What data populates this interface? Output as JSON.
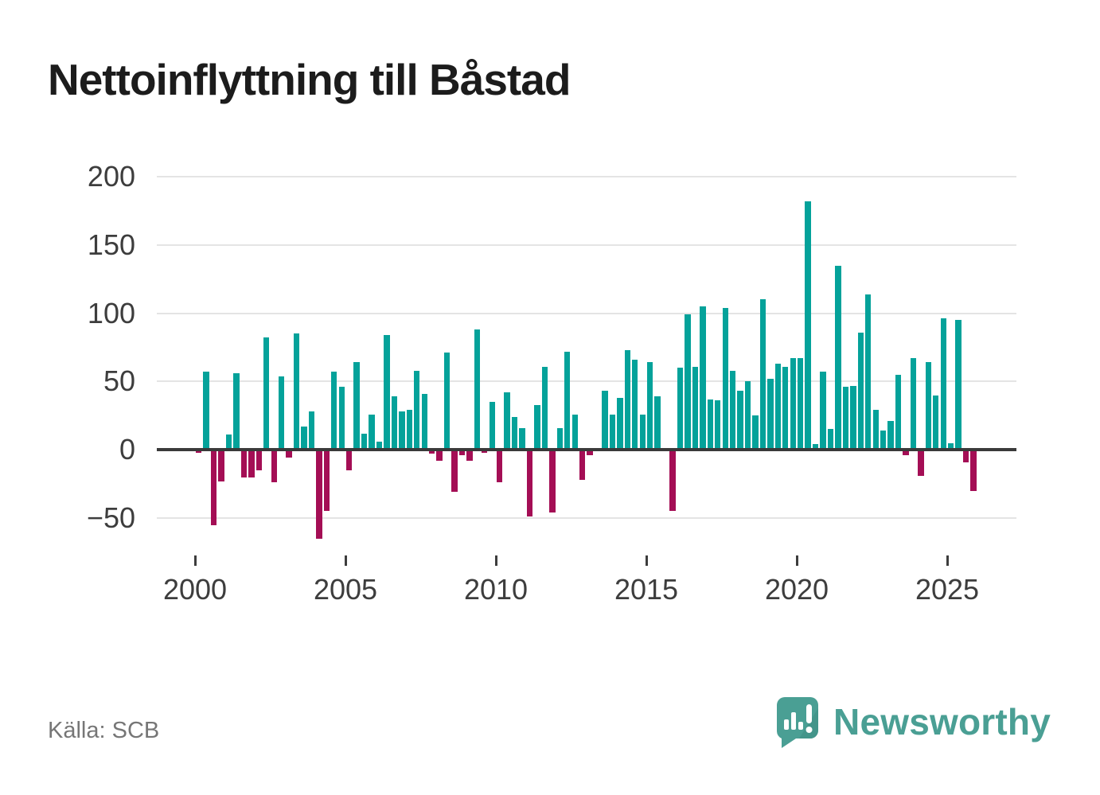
{
  "page": {
    "title": "Nettoinflyttning till Båstad",
    "source": "Källa: SCB"
  },
  "branding": {
    "name": "Newsworthy",
    "icon": "newsworthy-bubble-barchart-icon"
  },
  "colors": {
    "positive": "#04a29a",
    "negative": "#a40e55",
    "brand": "#4a9f94",
    "brand_shade": "#3e8c82",
    "grid": "#e4e4e4",
    "zero_line": "#3a3a3a",
    "axis_text": "#3d3d3d",
    "title_text": "#1c1c1c",
    "source_text": "#767676"
  },
  "chart_data": {
    "type": "bar",
    "title": "Nettoinflyttning till Båstad",
    "x_unit": "quarter",
    "x_start": "2000 Q1",
    "x_end": "2025 Q4",
    "values": [
      -2,
      57,
      -55,
      -23,
      11,
      56,
      -20,
      -20,
      -15,
      82,
      -24,
      54,
      -6,
      85,
      17,
      28,
      -65,
      -45,
      57,
      46,
      -15,
      64,
      12,
      26,
      6,
      84,
      39,
      28,
      29,
      58,
      41,
      -3,
      -8,
      71,
      -31,
      -4,
      -8,
      88,
      -2,
      35,
      -24,
      42,
      24,
      16,
      -49,
      33,
      61,
      -46,
      16,
      72,
      26,
      -22,
      -4,
      0,
      43,
      26,
      38,
      73,
      66,
      26,
      64,
      39,
      0,
      -45,
      60,
      99,
      61,
      105,
      37,
      36,
      104,
      58,
      43,
      50,
      25,
      110,
      52,
      63,
      61,
      67,
      67,
      182,
      4,
      57,
      15,
      135,
      46,
      47,
      86,
      114,
      29,
      14,
      21,
      55,
      -4,
      67,
      -19,
      64,
      40,
      96,
      5,
      95,
      -9,
      -30
    ],
    "yticks": [
      200,
      150,
      100,
      50,
      0,
      -50
    ],
    "xticks": [
      "2000",
      "2005",
      "2010",
      "2015",
      "2020",
      "2025"
    ],
    "ylim": [
      -65,
      200
    ],
    "grid": true,
    "legend": "none",
    "positive_color": "#04a29a",
    "negative_color": "#a40e55"
  }
}
